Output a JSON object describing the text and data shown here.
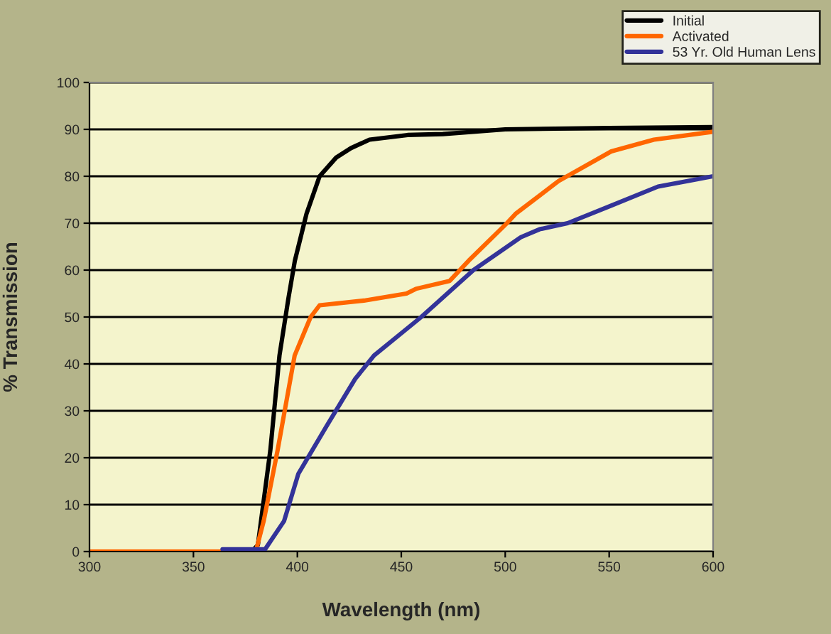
{
  "chart_data": {
    "type": "line",
    "xlabel": "Wavelength (nm)",
    "ylabel": "% Transmission",
    "xlim": [
      300,
      600
    ],
    "xticks": [
      300,
      350,
      400,
      450,
      500,
      550,
      600
    ],
    "ylim": [
      0,
      100
    ],
    "yticks": [
      0,
      10,
      20,
      30,
      40,
      50,
      60,
      70,
      80,
      90,
      100
    ],
    "grid": "y",
    "legend": "top right",
    "marker": "none",
    "line_style": "solid",
    "series": [
      {
        "name": "Initial",
        "color": "#000000",
        "x": [
          300,
          350,
          378,
          381,
          387,
          391.4,
          395.7,
          398.8,
          404.4,
          410.7,
          418.7,
          425.8,
          434.7,
          453,
          470,
          500,
          550,
          600
        ],
        "values": [
          0,
          0,
          0,
          1.4,
          21.6,
          41.8,
          54,
          62,
          72,
          80,
          84,
          86,
          87.8,
          88.8,
          89,
          90,
          90.3,
          90.5
        ]
      },
      {
        "name": "Activated",
        "color": "#ff6600",
        "x": [
          300,
          350,
          380,
          383.8,
          390.5,
          398.7,
          406.4,
          410.7,
          432,
          452.5,
          457,
          473.3,
          482.4,
          500.6,
          505,
          525.7,
          551,
          571.5,
          600
        ],
        "values": [
          0,
          0,
          0,
          6.5,
          21.6,
          41.8,
          50,
          52.5,
          53.5,
          55,
          56,
          57.7,
          62,
          69.9,
          72,
          79,
          85.3,
          87.8,
          89.5
        ]
      },
      {
        "name": "53 Yr. Old Human Lens",
        "color": "#333399",
        "x": [
          364,
          384.5,
          393.6,
          400.5,
          414,
          427.8,
          436.9,
          459.6,
          484.7,
          507.5,
          516.5,
          530,
          550.7,
          573.5,
          600
        ],
        "values": [
          0.5,
          0.5,
          6.5,
          16.6,
          26.7,
          36.8,
          41.8,
          50,
          60,
          67,
          68.7,
          70,
          73.7,
          77.8,
          80
        ]
      }
    ]
  }
}
